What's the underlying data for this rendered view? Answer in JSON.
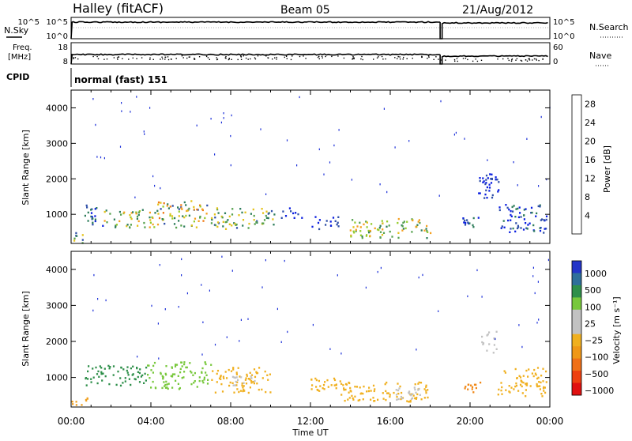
{
  "header": {
    "station": "Halley (fitACF)",
    "beam": "Beam 05",
    "date": "21/Aug/2012"
  },
  "param_labels": {
    "nsky": "N.Sky",
    "nsearch": "N.Search",
    "freq_line1": "Freq.",
    "freq_line2": "[MHz]",
    "nave": "Nave",
    "cpid": "CPID",
    "cpid_value": "normal (fast) 151"
  },
  "param_ticks": {
    "noise_left": [
      "10^5",
      "10^0"
    ],
    "noise_right": [
      "10^5",
      "10^0"
    ],
    "freq_left": [
      "18",
      "8"
    ],
    "freq_right": [
      "60",
      "0"
    ]
  },
  "chart_data": [
    {
      "type": "heatmap",
      "name": "power",
      "ylabel": "Slant Range [km]",
      "ylim": [
        180,
        4500
      ],
      "yticks": [
        "1000",
        "2000",
        "3000",
        "4000"
      ],
      "xlim_hours": [
        0,
        24
      ],
      "colorbar": {
        "label": "Power [dB]",
        "ticks": [
          "4",
          "8",
          "12",
          "16",
          "20",
          "24",
          "28"
        ],
        "colors": [
          "#0b1fe0",
          "#2f4fa8",
          "#2e7d5b",
          "#56a14e",
          "#96cc2b",
          "#e4c21a",
          "#f5a020",
          "#f07a15",
          "#ee4a10",
          "#e01010"
        ]
      },
      "echo_regions": [
        {
          "t": [
            0.0,
            0.6
          ],
          "r": [
            200,
            500
          ],
          "level": 2
        },
        {
          "t": [
            0.6,
            1.6
          ],
          "r": [
            700,
            1300
          ],
          "level": 1
        },
        {
          "t": [
            1.6,
            4.2
          ],
          "r": [
            650,
            1150
          ],
          "level": 3
        },
        {
          "t": [
            4.2,
            6.8
          ],
          "r": [
            650,
            1400
          ],
          "level": 4
        },
        {
          "t": [
            7.0,
            10.2
          ],
          "r": [
            600,
            1200
          ],
          "level": 2
        },
        {
          "t": [
            10.5,
            11.6
          ],
          "r": [
            900,
            1200
          ],
          "level": 0
        },
        {
          "t": [
            12.0,
            13.4
          ],
          "r": [
            600,
            1000
          ],
          "level": 0
        },
        {
          "t": [
            13.8,
            18.0
          ],
          "r": [
            350,
            900
          ],
          "level": 3
        },
        {
          "t": [
            19.4,
            20.4
          ],
          "r": [
            600,
            1000
          ],
          "level": 1
        },
        {
          "t": [
            20.4,
            21.4
          ],
          "r": [
            1400,
            2300
          ],
          "level": 0
        },
        {
          "t": [
            21.4,
            23.8
          ],
          "r": [
            500,
            1300
          ],
          "level": 1
        }
      ]
    },
    {
      "type": "heatmap",
      "name": "velocity",
      "ylabel": "Slant Range [km]",
      "xlabel": "Time UT",
      "ylim": [
        180,
        4500
      ],
      "yticks": [
        "1000",
        "2000",
        "3000",
        "4000"
      ],
      "xlim_hours": [
        0,
        24
      ],
      "xticks": [
        "00:00",
        "04:00",
        "08:00",
        "12:00",
        "16:00",
        "20:00",
        "00:00"
      ],
      "colorbar": {
        "label": "Velocity [m s⁻¹]",
        "ticks": [
          "1000",
          "500",
          "100",
          "25",
          "−25",
          "−100",
          "−500",
          "−1000"
        ],
        "colors": [
          "#2335c8",
          "#2e6f9a",
          "#2e8f4a",
          "#78c83c",
          "#c2c2c2",
          "#c2c2c2",
          "#f0b020",
          "#f09818",
          "#f07018",
          "#ee4010",
          "#e01010"
        ]
      },
      "echo_regions": [
        {
          "t": [
            0.0,
            0.8
          ],
          "r": [
            200,
            500
          ],
          "color": "#f0a020"
        },
        {
          "t": [
            0.6,
            3.8
          ],
          "r": [
            800,
            1350
          ],
          "color": "#2e8f4a"
        },
        {
          "t": [
            3.8,
            7.0
          ],
          "r": [
            700,
            1450
          ],
          "color": "#78c83c"
        },
        {
          "t": [
            7.0,
            10.0
          ],
          "r": [
            600,
            1300
          ],
          "color": "#f0b020"
        },
        {
          "t": [
            8.0,
            9.5
          ],
          "r": [
            800,
            1100
          ],
          "color": "#c2c2c2"
        },
        {
          "t": [
            12.0,
            13.5
          ],
          "r": [
            600,
            1000
          ],
          "color": "#f0b020"
        },
        {
          "t": [
            13.5,
            18.0
          ],
          "r": [
            350,
            900
          ],
          "color": "#f0b020"
        },
        {
          "t": [
            16.2,
            17.5
          ],
          "r": [
            400,
            800
          ],
          "color": "#c2c2c2"
        },
        {
          "t": [
            19.5,
            20.5
          ],
          "r": [
            600,
            1000
          ],
          "color": "#f08818"
        },
        {
          "t": [
            20.5,
            21.3
          ],
          "r": [
            1700,
            2300
          ],
          "color": "#c2c2c2"
        },
        {
          "t": [
            21.3,
            23.8
          ],
          "r": [
            500,
            1300
          ],
          "color": "#f0b020"
        }
      ]
    }
  ]
}
